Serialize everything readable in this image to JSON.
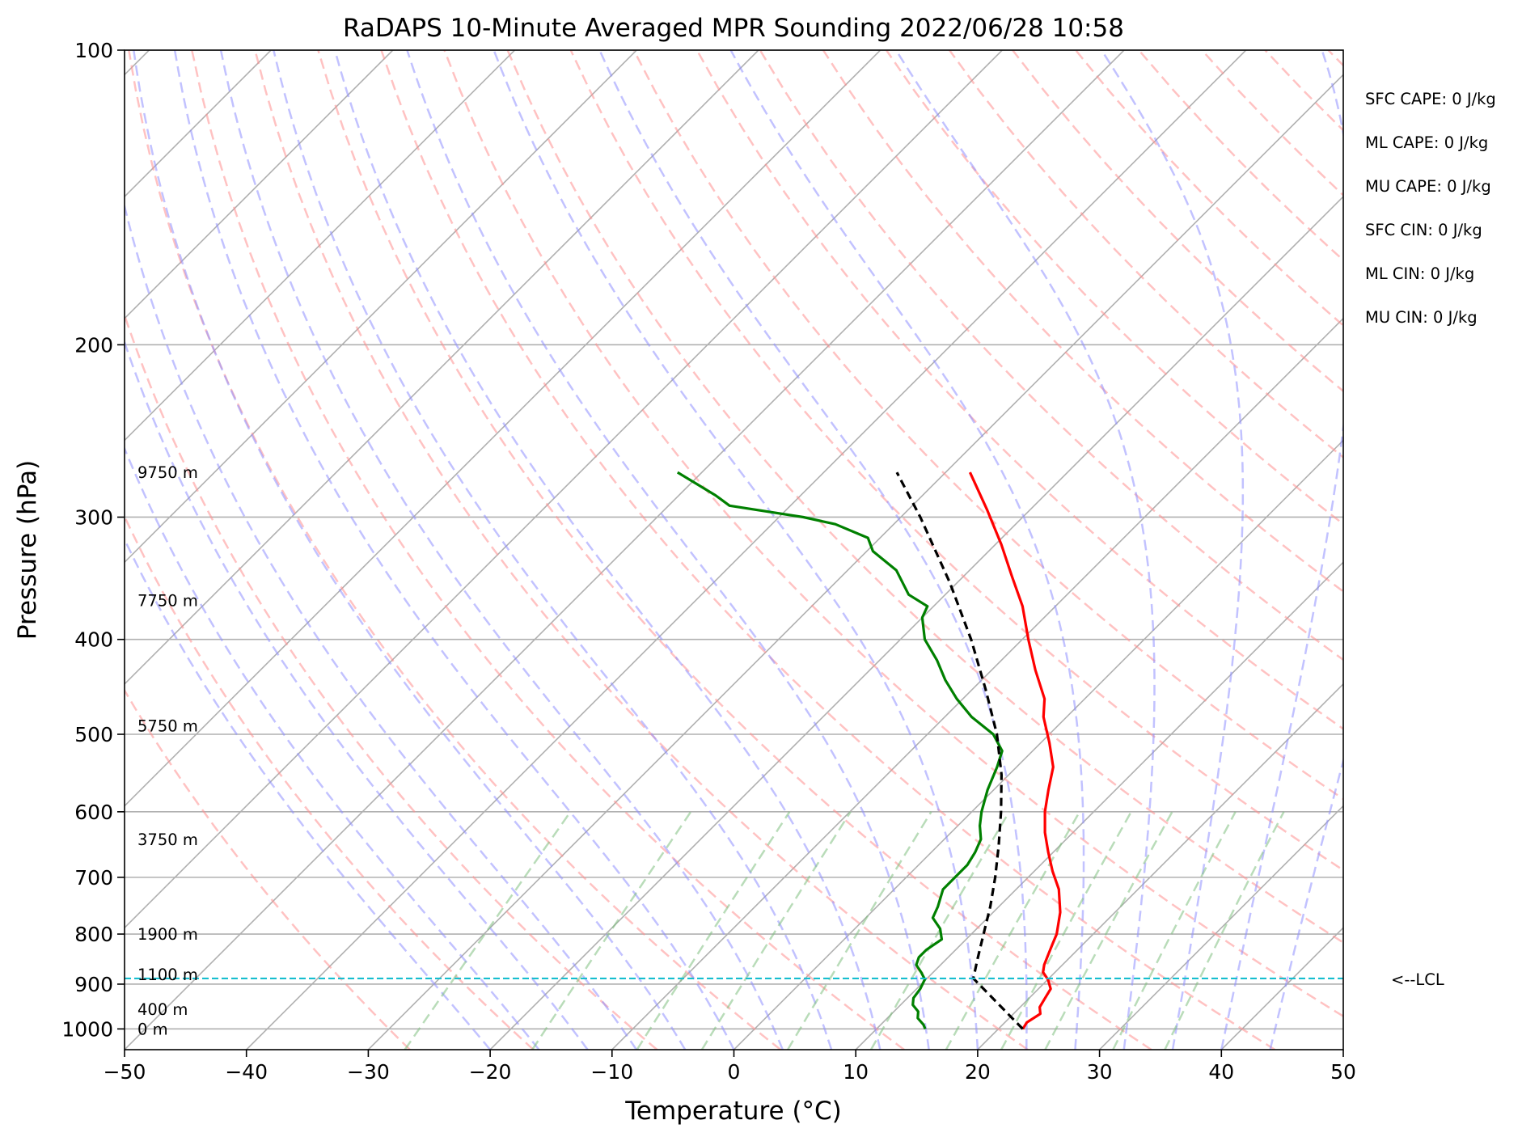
{
  "chart_data": {
    "type": "line",
    "title": "RaDAPS 10-Minute Averaged MPR Sounding 2022/06/28 10:58",
    "xlabel": "Temperature (°C)",
    "ylabel": "Pressure (hPa)",
    "xlim": [
      -50,
      50
    ],
    "ylim": [
      1050,
      100
    ],
    "y_scale": "log",
    "grid": true,
    "x_ticks": [
      {
        "value": -50,
        "label": "−50"
      },
      {
        "value": -40,
        "label": "−40"
      },
      {
        "value": -30,
        "label": "−30"
      },
      {
        "value": -20,
        "label": "−20"
      },
      {
        "value": -10,
        "label": "−10"
      },
      {
        "value": 0,
        "label": "0"
      },
      {
        "value": 10,
        "label": "10"
      },
      {
        "value": 20,
        "label": "20"
      },
      {
        "value": 30,
        "label": "30"
      },
      {
        "value": 40,
        "label": "40"
      },
      {
        "value": 50,
        "label": "50"
      }
    ],
    "y_ticks": [
      {
        "value": 100,
        "label": "100"
      },
      {
        "value": 200,
        "label": "200"
      },
      {
        "value": 300,
        "label": "300"
      },
      {
        "value": 400,
        "label": "400"
      },
      {
        "value": 500,
        "label": "500"
      },
      {
        "value": 600,
        "label": "600"
      },
      {
        "value": 700,
        "label": "700"
      },
      {
        "value": 800,
        "label": "800"
      },
      {
        "value": 900,
        "label": "900"
      },
      {
        "value": 1000,
        "label": "1000"
      }
    ],
    "height_labels": [
      {
        "label": "0 m",
        "p": 1000
      },
      {
        "label": "400 m",
        "p": 955
      },
      {
        "label": "1100 m",
        "p": 880
      },
      {
        "label": "1900 m",
        "p": 800
      },
      {
        "label": "3750 m",
        "p": 640
      },
      {
        "label": "5750 m",
        "p": 490
      },
      {
        "label": "7750 m",
        "p": 365
      },
      {
        "label": "9750 m",
        "p": 270
      }
    ],
    "lcl": {
      "p": 888,
      "label": "<--LCL",
      "color": "#17becf"
    },
    "indices": [
      {
        "label": "SFC CAPE: 0 J/kg"
      },
      {
        "label": "ML CAPE: 0 J/kg"
      },
      {
        "label": "MU CAPE: 0 J/kg"
      },
      {
        "label": "SFC CIN: 0 J/kg"
      },
      {
        "label": "ML CIN: 0 J/kg"
      },
      {
        "label": "MU CIN: 0 J/kg"
      }
    ],
    "series": [
      {
        "key": "temperature",
        "color": "#ff0000",
        "points": [
          [
            1000,
            22
          ],
          [
            985,
            21.8
          ],
          [
            965,
            22.2
          ],
          [
            950,
            21.6
          ],
          [
            930,
            21.3
          ],
          [
            910,
            21
          ],
          [
            890,
            20
          ],
          [
            875,
            19
          ],
          [
            860,
            18.5
          ],
          [
            840,
            18
          ],
          [
            820,
            17.5
          ],
          [
            800,
            17
          ],
          [
            760,
            15.5
          ],
          [
            720,
            13.5
          ],
          [
            690,
            11.5
          ],
          [
            660,
            9.6
          ],
          [
            630,
            7.7
          ],
          [
            600,
            6
          ],
          [
            570,
            4.5
          ],
          [
            540,
            3
          ],
          [
            510,
            0.7
          ],
          [
            480,
            -1.9
          ],
          [
            460,
            -3.3
          ],
          [
            430,
            -6.4
          ],
          [
            400,
            -9.5
          ],
          [
            370,
            -12.7
          ],
          [
            345,
            -16
          ],
          [
            320,
            -19.5
          ],
          [
            295,
            -23.5
          ],
          [
            270,
            -28
          ]
        ]
      },
      {
        "key": "dewpoint",
        "color": "#008000",
        "points": [
          [
            1000,
            14
          ],
          [
            990,
            13.5
          ],
          [
            975,
            12.5
          ],
          [
            960,
            12
          ],
          [
            945,
            11
          ],
          [
            930,
            10.5
          ],
          [
            910,
            10.3
          ],
          [
            890,
            9.9
          ],
          [
            875,
            9
          ],
          [
            860,
            8
          ],
          [
            845,
            7.6
          ],
          [
            830,
            7.6
          ],
          [
            810,
            8
          ],
          [
            790,
            7
          ],
          [
            770,
            5.5
          ],
          [
            750,
            5
          ],
          [
            720,
            4
          ],
          [
            700,
            4
          ],
          [
            680,
            4
          ],
          [
            660,
            3.6
          ],
          [
            640,
            3
          ],
          [
            620,
            1.8
          ],
          [
            600,
            0.8
          ],
          [
            570,
            -0.5
          ],
          [
            540,
            -1.6
          ],
          [
            520,
            -2.5
          ],
          [
            500,
            -4.6
          ],
          [
            480,
            -7.8
          ],
          [
            460,
            -10.5
          ],
          [
            440,
            -13
          ],
          [
            420,
            -15.3
          ],
          [
            400,
            -18
          ],
          [
            380,
            -20
          ],
          [
            370,
            -20.5
          ],
          [
            360,
            -23
          ],
          [
            340,
            -26
          ],
          [
            325,
            -29.5
          ],
          [
            315,
            -31
          ],
          [
            305,
            -34.8
          ],
          [
            300,
            -38
          ],
          [
            292,
            -45
          ],
          [
            285,
            -47
          ],
          [
            270,
            -52
          ]
        ]
      },
      {
        "key": "parcel",
        "color": "#000000",
        "dash": true,
        "points": [
          [
            1000,
            22
          ],
          [
            888,
            13.8
          ],
          [
            850,
            12.6
          ],
          [
            800,
            11
          ],
          [
            750,
            9.3
          ],
          [
            700,
            7.3
          ],
          [
            650,
            5
          ],
          [
            600,
            2.4
          ],
          [
            550,
            -0.6
          ],
          [
            500,
            -4.3
          ],
          [
            450,
            -8.9
          ],
          [
            400,
            -14.2
          ],
          [
            350,
            -20.6
          ],
          [
            300,
            -28.4
          ],
          [
            270,
            -34
          ]
        ]
      }
    ],
    "colors": {
      "grid": "#b0b0b0",
      "dry_adiabat": "#ff9090",
      "moist_adiabat": "#9090ff",
      "mixing_ratio": "#80c080"
    }
  }
}
